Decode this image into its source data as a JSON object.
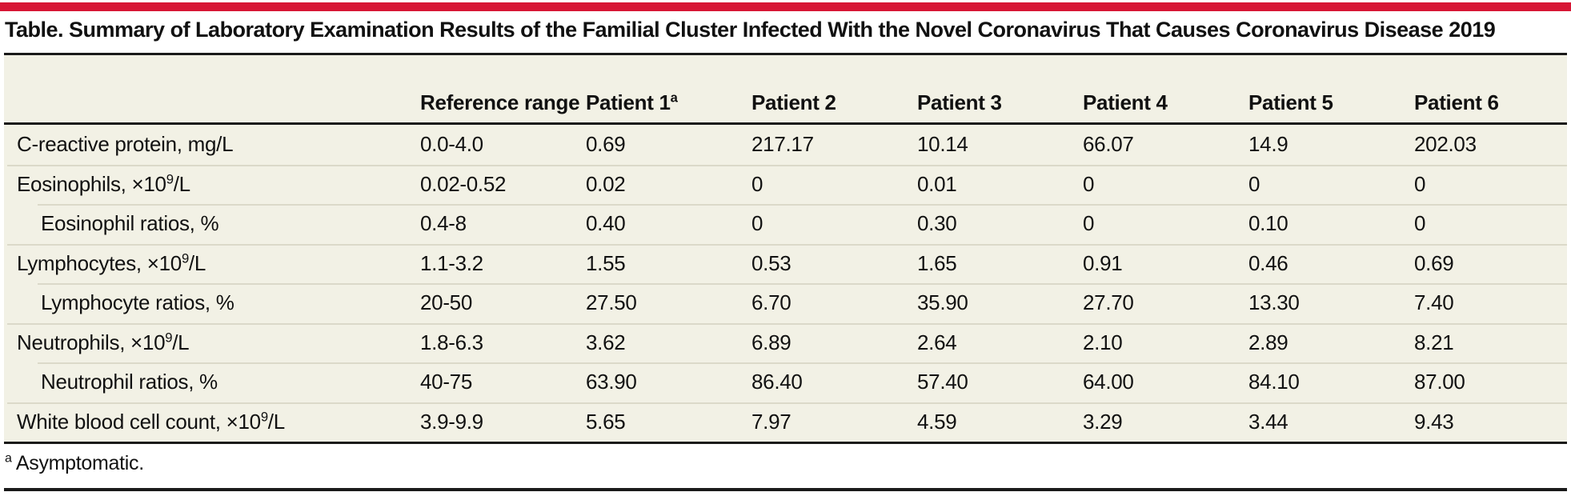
{
  "accent_color": "#d71635",
  "table_background_color": "#f2f1e5",
  "separator_color": "#dbd9c9",
  "rule_color": "#1a1a1a",
  "title": "Table. Summary of Laboratory Examination Results of the Familial Cluster Infected With the Novel Coronavirus That Causes Coronavirus Disease 2019",
  "table": {
    "header": {
      "row_label_column": "",
      "columns": [
        {
          "label": "Reference range",
          "sup": ""
        },
        {
          "label": "Patient 1",
          "sup": "a"
        },
        {
          "label": "Patient 2",
          "sup": ""
        },
        {
          "label": "Patient 3",
          "sup": ""
        },
        {
          "label": "Patient 4",
          "sup": ""
        },
        {
          "label": "Patient 5",
          "sup": ""
        },
        {
          "label": "Patient 6",
          "sup": ""
        }
      ]
    },
    "rows": [
      {
        "label_pre": "C-reactive protein, mg/L",
        "label_sup": "",
        "label_post": "",
        "indent": false,
        "values": [
          "0.0-4.0",
          "0.69",
          "217.17",
          "10.14",
          "66.07",
          "14.9",
          "202.03"
        ]
      },
      {
        "label_pre": "Eosinophils, ×10",
        "label_sup": "9",
        "label_post": "/L",
        "indent": false,
        "values": [
          "0.02-0.52",
          "0.02",
          "0",
          "0.01",
          "0",
          "0",
          "0"
        ]
      },
      {
        "label_pre": "Eosinophil ratios, %",
        "label_sup": "",
        "label_post": "",
        "indent": true,
        "values": [
          "0.4-8",
          "0.40",
          "0",
          "0.30",
          "0",
          "0.10",
          "0"
        ]
      },
      {
        "label_pre": "Lymphocytes, ×10",
        "label_sup": "9",
        "label_post": "/L",
        "indent": false,
        "values": [
          "1.1-3.2",
          "1.55",
          "0.53",
          "1.65",
          "0.91",
          "0.46",
          "0.69"
        ]
      },
      {
        "label_pre": "Lymphocyte ratios, %",
        "label_sup": "",
        "label_post": "",
        "indent": true,
        "values": [
          "20-50",
          "27.50",
          "6.70",
          "35.90",
          "27.70",
          "13.30",
          "7.40"
        ]
      },
      {
        "label_pre": "Neutrophils, ×10",
        "label_sup": "9",
        "label_post": "/L",
        "indent": false,
        "values": [
          "1.8-6.3",
          "3.62",
          "6.89",
          "2.64",
          "2.10",
          "2.89",
          "8.21"
        ]
      },
      {
        "label_pre": "Neutrophil ratios, %",
        "label_sup": "",
        "label_post": "",
        "indent": true,
        "values": [
          "40-75",
          "63.90",
          "86.40",
          "57.40",
          "64.00",
          "84.10",
          "87.00"
        ]
      },
      {
        "label_pre": "White blood cell count, ×10",
        "label_sup": "9",
        "label_post": "/L",
        "indent": false,
        "values": [
          "3.9-9.9",
          "5.65",
          "7.97",
          "4.59",
          "3.29",
          "3.44",
          "9.43"
        ]
      }
    ]
  },
  "footnote": {
    "marker": "a",
    "text": " Asymptomatic."
  }
}
